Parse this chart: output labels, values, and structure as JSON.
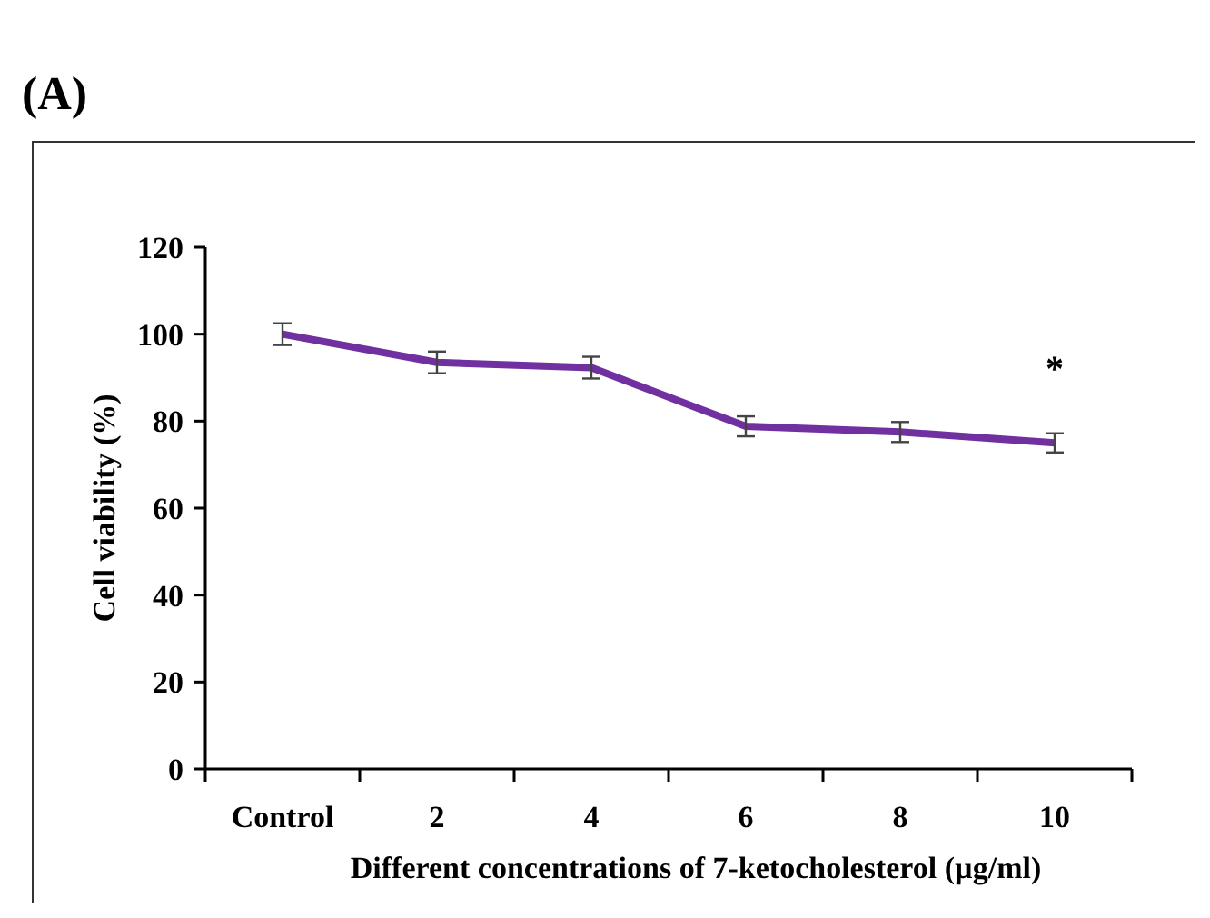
{
  "chart_data": {
    "type": "line",
    "title": "(A)",
    "xlabel": "Different concentrations  of 7-ketocholesterol (µg/ml)",
    "ylabel": "Cell viability  (%)",
    "categories": [
      "Control",
      "2",
      "4",
      "6",
      "8",
      "10"
    ],
    "series": [
      {
        "color": "#7030a0",
        "values": [
          100,
          93.5,
          92.3,
          78.8,
          77.5,
          75
        ],
        "errors": [
          2.5,
          2.5,
          2.5,
          2.3,
          2.3,
          2.2
        ]
      }
    ],
    "ylim": [
      0,
      120
    ],
    "yticks": [
      0,
      20,
      40,
      60,
      80,
      100,
      120
    ],
    "grid": false,
    "marker": "none",
    "line_style": "solid",
    "annotations": [
      "*"
    ]
  }
}
